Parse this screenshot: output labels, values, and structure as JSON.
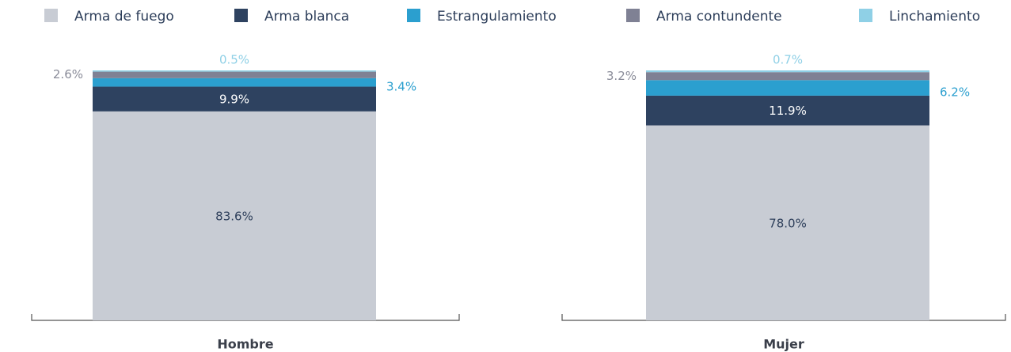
{
  "chart_data": {
    "type": "stacked_bar",
    "categories": [
      "Hombre",
      "Mujer"
    ],
    "ylim": [
      0,
      100
    ],
    "series": [
      {
        "name": "Arma de fuego",
        "color": "#c8ccd4",
        "values": [
          83.6,
          78.0
        ],
        "value_labels": [
          "83.6%",
          "78.0%"
        ]
      },
      {
        "name": "Arma blanca",
        "color": "#2e4260",
        "values": [
          9.9,
          11.9
        ],
        "value_labels": [
          "9.9%",
          "11.9%"
        ]
      },
      {
        "name": "Estrangulamiento",
        "color": "#2b9fcf",
        "values": [
          3.4,
          6.2
        ],
        "value_labels": [
          "3.4%",
          "6.2%"
        ]
      },
      {
        "name": "Arma contundente",
        "color": "#7f8194",
        "values": [
          2.6,
          3.2
        ],
        "value_labels": [
          "2.6%",
          "3.2%"
        ]
      },
      {
        "name": "Linchamiento",
        "color": "#8fd0e6",
        "values": [
          0.5,
          0.7
        ],
        "value_labels": [
          "0.5%",
          "0.7%"
        ]
      }
    ]
  }
}
